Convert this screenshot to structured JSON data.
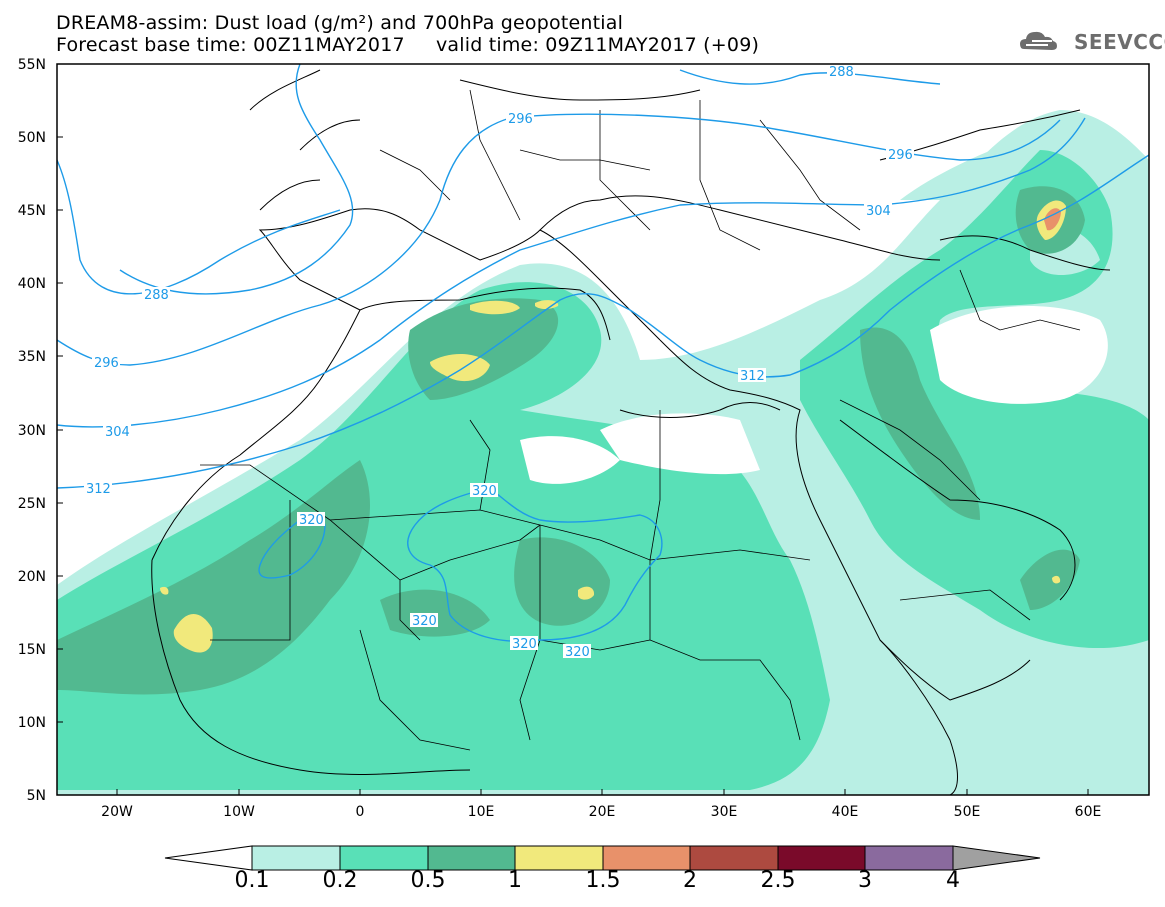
{
  "header": {
    "title_line1": "DREAM8-assim: Dust load (g/m²) and 700hPa geopotential",
    "title_line2": "Forecast base time: 00Z11MAY2017     valid time: 09Z11MAY2017 (+09)",
    "logo_text": "SEEVCCC"
  },
  "map": {
    "lat_labels": [
      "55N",
      "50N",
      "45N",
      "40N",
      "35N",
      "30N",
      "25N",
      "20N",
      "15N",
      "10N",
      "5N"
    ],
    "lon_labels": [
      "20W",
      "10W",
      "0",
      "10E",
      "20E",
      "30E",
      "40E",
      "50E",
      "60E"
    ],
    "contour_labels": [
      "288",
      "296",
      "296",
      "304",
      "312",
      "320",
      "288",
      "296",
      "304",
      "312",
      "320",
      "320",
      "320",
      "320"
    ],
    "contour_color": "#1e9be8"
  },
  "colorbar": {
    "labels": [
      "0.1",
      "0.2",
      "0.5",
      "1",
      "1.5",
      "2",
      "2.5",
      "3",
      "4"
    ],
    "colors": [
      "#b9efe4",
      "#59e0b7",
      "#52b990",
      "#f1e97c",
      "#e8916a",
      "#ad4a40",
      "#7a0a2a",
      "#8a6a9e"
    ]
  },
  "chart_data": {
    "type": "heatmap",
    "title": "DREAM8-assim: Dust load (g/m²) and 700hPa geopotential",
    "levels": [
      0.1,
      0.2,
      0.5,
      1,
      1.5,
      2,
      2.5,
      3,
      4
    ],
    "lon_range": [
      -25,
      65
    ],
    "lat_range": [
      5,
      55
    ],
    "geopotential_contours": [
      288,
      296,
      304,
      312,
      320
    ]
  }
}
